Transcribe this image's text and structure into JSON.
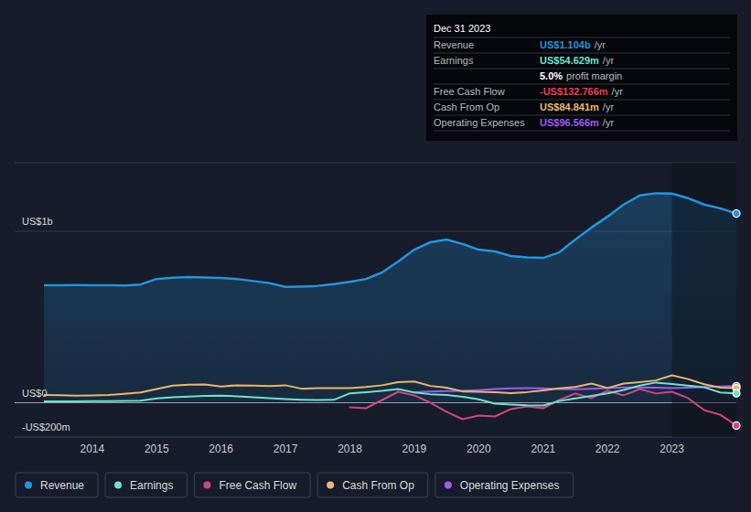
{
  "chart_data": {
    "type": "line",
    "x": [
      2013.25,
      2013.5,
      2013.75,
      2014,
      2014.25,
      2014.5,
      2014.75,
      2015,
      2015.25,
      2015.5,
      2015.75,
      2016,
      2016.25,
      2016.5,
      2016.75,
      2017,
      2017.25,
      2017.5,
      2017.75,
      2018,
      2018.25,
      2018.5,
      2018.75,
      2019,
      2019.25,
      2019.5,
      2019.75,
      2020,
      2020.25,
      2020.5,
      2020.75,
      2021,
      2021.25,
      2021.5,
      2021.75,
      2022,
      2022.25,
      2022.5,
      2022.75,
      2023,
      2023.25,
      2023.5,
      2023.75,
      2024
    ],
    "xlim": [
      2013.25,
      2024
    ],
    "xticks": [
      2014,
      2015,
      2016,
      2017,
      2018,
      2019,
      2020,
      2021,
      2022,
      2023
    ],
    "ylim": [
      -200,
      1400
    ],
    "yticks": [
      {
        "value": 1000,
        "label": "US$1b"
      },
      {
        "value": 0,
        "label": "US$0"
      },
      {
        "value": -200,
        "label": "-US$200m"
      }
    ],
    "grid": true,
    "legend": "bottom",
    "series": [
      {
        "name": "Revenue",
        "type": "area",
        "color": "#2394df",
        "values": [
          685,
          686,
          687,
          686,
          685,
          684,
          690,
          722,
          730,
          733,
          731,
          728,
          722,
          710,
          698,
          676,
          678,
          682,
          692,
          705,
          722,
          760,
          824,
          893,
          936,
          952,
          926,
          893,
          883,
          856,
          848,
          845,
          877,
          952,
          1022,
          1086,
          1156,
          1209,
          1222,
          1220,
          1193,
          1156,
          1134,
          1104
        ]
      },
      {
        "name": "Earnings",
        "type": "line",
        "color": "#6ee2c9",
        "values": [
          8,
          8,
          8,
          9,
          10,
          11,
          12,
          25,
          32,
          36,
          40,
          42,
          38,
          32,
          27,
          22,
          18,
          16,
          17,
          55,
          62,
          70,
          80,
          60,
          50,
          45,
          35,
          20,
          -5,
          -10,
          -15,
          -16,
          10,
          25,
          40,
          55,
          75,
          100,
          118,
          110,
          100,
          90,
          60,
          55
        ]
      },
      {
        "name": "Free Cash Flow",
        "type": "line",
        "color": "#d1457f",
        "values": [
          null,
          null,
          null,
          null,
          null,
          null,
          null,
          null,
          null,
          null,
          null,
          null,
          null,
          null,
          null,
          null,
          null,
          null,
          null,
          -27,
          -32,
          16,
          64,
          43,
          0,
          -53,
          -96,
          -75,
          -80,
          -37,
          -21,
          -32,
          16,
          54,
          27,
          70,
          43,
          80,
          54,
          64,
          27,
          -43,
          -70,
          -133
        ]
      },
      {
        "name": "Cash From Op",
        "type": "line",
        "color": "#e9b66e",
        "values": [
          45,
          44,
          42,
          43,
          46,
          52,
          60,
          80,
          100,
          106,
          107,
          95,
          102,
          100,
          98,
          102,
          82,
          85,
          86,
          86,
          92,
          102,
          120,
          124,
          98,
          88,
          66,
          64,
          62,
          56,
          62,
          72,
          84,
          92,
          112,
          86,
          112,
          120,
          130,
          160,
          138,
          108,
          88,
          85
        ]
      },
      {
        "name": "Operating Expenses",
        "type": "line",
        "color": "#a259f2",
        "values": [
          null,
          null,
          null,
          null,
          null,
          null,
          null,
          null,
          null,
          null,
          null,
          null,
          null,
          null,
          null,
          null,
          null,
          null,
          null,
          null,
          null,
          null,
          null,
          62,
          65,
          68,
          70,
          74,
          80,
          84,
          85,
          84,
          80,
          79,
          82,
          86,
          89,
          90,
          88,
          86,
          88,
          92,
          95,
          97
        ]
      }
    ]
  },
  "tooltip": {
    "title": "Dec 31 2023",
    "rows": [
      {
        "label": "Revenue",
        "value": "US$1.104b",
        "unit": "/yr"
      },
      {
        "label": "Earnings",
        "value": "US$54.629m",
        "unit": "/yr"
      },
      {
        "value": "5.0%",
        "text": "profit margin"
      },
      {
        "label": "Free Cash Flow",
        "value": "-US$132.766m",
        "unit": "/yr"
      },
      {
        "label": "Cash From Op",
        "value": "US$84.841m",
        "unit": "/yr"
      },
      {
        "label": "Operating Expenses",
        "value": "US$96.566m",
        "unit": "/yr"
      }
    ]
  }
}
